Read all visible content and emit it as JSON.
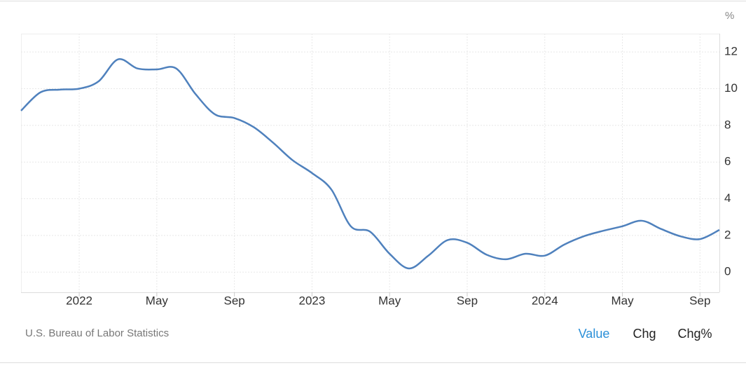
{
  "chart_data": {
    "type": "line",
    "unit": "%",
    "source": "U.S. Bureau of Labor Statistics",
    "buttons": [
      "Value",
      "Chg",
      "Chg%"
    ],
    "categories": [
      null,
      null,
      null,
      "2022",
      null,
      null,
      null,
      "May",
      null,
      null,
      null,
      "Sep",
      null,
      null,
      null,
      "2023",
      null,
      null,
      null,
      "May",
      null,
      null,
      null,
      "Sep",
      null,
      null,
      null,
      "2024",
      null,
      null,
      null,
      "May",
      null,
      null,
      null,
      "Sep",
      null
    ],
    "values": [
      8.8,
      9.8,
      9.95,
      10.0,
      10.4,
      11.6,
      11.1,
      11.05,
      11.1,
      9.7,
      8.6,
      8.4,
      7.9,
      7.05,
      6.1,
      5.4,
      4.5,
      2.5,
      2.2,
      1.0,
      0.2,
      0.9,
      1.75,
      1.6,
      0.95,
      0.7,
      1.0,
      0.9,
      1.5,
      1.95,
      2.25,
      2.5,
      2.8,
      2.35,
      1.95,
      1.8,
      2.3
    ],
    "color": "#4f81bd",
    "ylim": [
      -1.1,
      13
    ],
    "yticks": [
      0,
      2,
      4,
      6,
      8,
      10,
      12
    ],
    "grid": true
  }
}
